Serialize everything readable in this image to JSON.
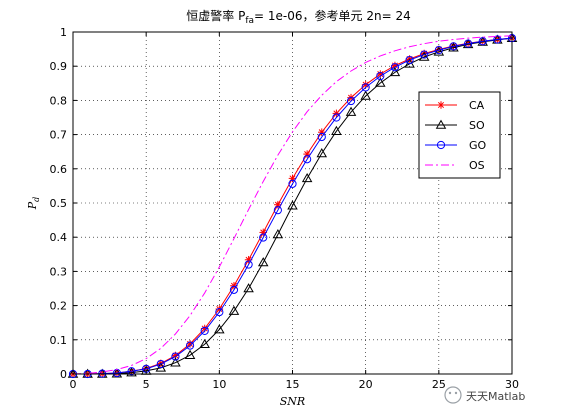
{
  "chart_data": {
    "type": "line",
    "title": "恒虚警率 P",
    "title_sub": "fa",
    "title_rest": "= 1e-06，参考单元 2n= 24",
    "xlabel": "SNR",
    "ylabel": "P",
    "ylabel_sub": "d",
    "xlim": [
      0,
      30
    ],
    "ylim": [
      0,
      1
    ],
    "xticks": [
      0,
      5,
      10,
      15,
      20,
      25,
      30
    ],
    "yticks": [
      0,
      0.1,
      0.2,
      0.3,
      0.4,
      0.5,
      0.6,
      0.7,
      0.8,
      0.9,
      1
    ],
    "grid": true,
    "legend_position": "right",
    "x": [
      0,
      1,
      2,
      3,
      4,
      5,
      6,
      7,
      8,
      9,
      10,
      11,
      12,
      13,
      14,
      15,
      16,
      17,
      18,
      19,
      20,
      21,
      22,
      23,
      24,
      25,
      26,
      27,
      28,
      29,
      30
    ],
    "series": [
      {
        "name": "CA",
        "color": "#ff0000",
        "marker": "star",
        "values": [
          0.0,
          0.0,
          0.001,
          0.003,
          0.008,
          0.016,
          0.031,
          0.054,
          0.088,
          0.133,
          0.19,
          0.258,
          0.334,
          0.414,
          0.495,
          0.572,
          0.643,
          0.707,
          0.762,
          0.808,
          0.846,
          0.877,
          0.902,
          0.921,
          0.937,
          0.949,
          0.959,
          0.967,
          0.973,
          0.978,
          0.982
        ]
      },
      {
        "name": "SO",
        "color": "#000000",
        "marker": "triangle",
        "values": [
          0.0,
          0.0,
          0.0,
          0.001,
          0.004,
          0.009,
          0.018,
          0.033,
          0.055,
          0.087,
          0.13,
          0.184,
          0.25,
          0.326,
          0.408,
          0.492,
          0.572,
          0.645,
          0.71,
          0.766,
          0.813,
          0.851,
          0.882,
          0.907,
          0.927,
          0.942,
          0.954,
          0.964,
          0.971,
          0.977,
          0.982
        ]
      },
      {
        "name": "GO",
        "color": "#0000ff",
        "marker": "circle",
        "values": [
          0.0,
          0.0,
          0.001,
          0.003,
          0.008,
          0.015,
          0.029,
          0.051,
          0.083,
          0.126,
          0.181,
          0.246,
          0.32,
          0.399,
          0.479,
          0.556,
          0.628,
          0.693,
          0.75,
          0.798,
          0.838,
          0.871,
          0.897,
          0.918,
          0.934,
          0.947,
          0.958,
          0.966,
          0.973,
          0.978,
          0.982
        ]
      },
      {
        "name": "OS",
        "color": "#ff00ff",
        "marker": "none",
        "dash": "dashdot",
        "values": [
          0.0,
          0.002,
          0.006,
          0.013,
          0.025,
          0.045,
          0.075,
          0.117,
          0.171,
          0.237,
          0.313,
          0.396,
          0.481,
          0.563,
          0.64,
          0.708,
          0.767,
          0.815,
          0.855,
          0.886,
          0.911,
          0.93,
          0.945,
          0.957,
          0.966,
          0.973,
          0.978,
          0.982,
          0.985,
          0.987,
          0.989
        ]
      }
    ]
  },
  "watermark": "天天Matlab"
}
